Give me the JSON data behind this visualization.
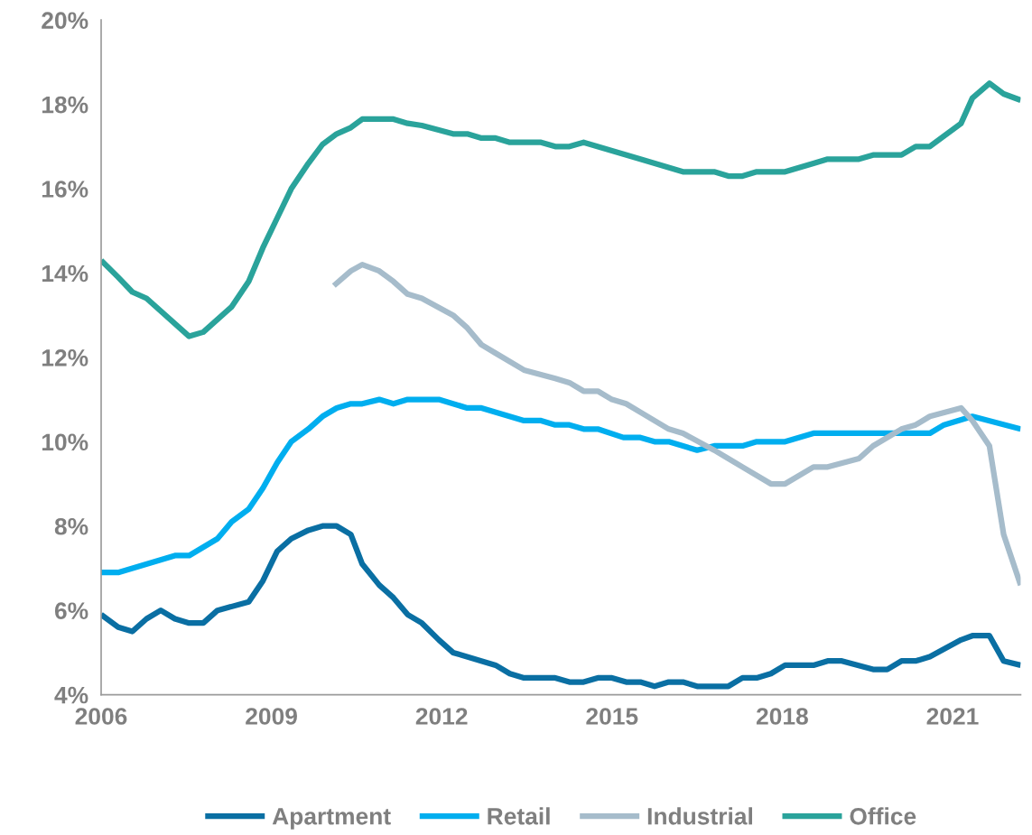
{
  "chart_data": {
    "type": "line",
    "xlim": [
      2006,
      2022.2
    ],
    "ylim": [
      4,
      20
    ],
    "xticks": [
      2006,
      2009,
      2012,
      2015,
      2018,
      2021
    ],
    "yticks": [
      {
        "value": 4,
        "label": "4%"
      },
      {
        "value": 6,
        "label": "6%"
      },
      {
        "value": 8,
        "label": "8%"
      },
      {
        "value": 10,
        "label": "10%"
      },
      {
        "value": 12,
        "label": "12%"
      },
      {
        "value": 14,
        "label": "14%"
      },
      {
        "value": 16,
        "label": "16%"
      },
      {
        "value": 18,
        "label": "18%"
      },
      {
        "value": 20,
        "label": "20%"
      }
    ],
    "grid": false,
    "legend": "bottom",
    "marker": "none",
    "line_style": "solid",
    "series": [
      {
        "name": "Apartment",
        "color": "#0a6fa3",
        "x": [
          2006,
          2006.3,
          2006.55,
          2006.8,
          2007.05,
          2007.3,
          2007.55,
          2007.8,
          2008.05,
          2008.6,
          2008.85,
          2009.1,
          2009.35,
          2009.65,
          2009.9,
          2010.15,
          2010.4,
          2010.6,
          2010.9,
          2011.15,
          2011.4,
          2011.65,
          2011.95,
          2012.2,
          2012.95,
          2013.2,
          2013.45,
          2014.0,
          2014.25,
          2014.5,
          2014.75,
          2015.0,
          2015.25,
          2015.5,
          2015.75,
          2016.0,
          2016.25,
          2016.5,
          2017.05,
          2017.3,
          2017.55,
          2017.8,
          2018.05,
          2018.55,
          2018.8,
          2019.05,
          2019.6,
          2019.85,
          2020.1,
          2020.35,
          2020.6,
          2021.15,
          2021.35,
          2021.65,
          2021.9,
          2022.2
        ],
        "values": [
          5.9,
          5.6,
          5.5,
          5.8,
          6.0,
          5.8,
          5.7,
          5.7,
          6.0,
          6.2,
          6.7,
          7.4,
          7.7,
          7.9,
          8.0,
          8.0,
          7.8,
          7.1,
          6.6,
          6.3,
          5.9,
          5.7,
          5.3,
          5.0,
          4.7,
          4.5,
          4.4,
          4.4,
          4.3,
          4.3,
          4.4,
          4.4,
          4.3,
          4.3,
          4.2,
          4.3,
          4.3,
          4.2,
          4.2,
          4.4,
          4.4,
          4.5,
          4.7,
          4.7,
          4.8,
          4.8,
          4.6,
          4.6,
          4.8,
          4.8,
          4.9,
          5.3,
          5.4,
          5.4,
          4.8,
          4.7
        ]
      },
      {
        "name": "Retail",
        "color": "#00aeef",
        "x": [
          2006,
          2006.3,
          2007.3,
          2007.55,
          2008.05,
          2008.3,
          2008.6,
          2008.85,
          2009.1,
          2009.35,
          2009.65,
          2009.9,
          2010.15,
          2010.4,
          2010.6,
          2010.9,
          2011.15,
          2011.4,
          2011.95,
          2012.45,
          2012.7,
          2013.45,
          2013.75,
          2014.0,
          2014.25,
          2014.5,
          2014.75,
          2015.2,
          2015.5,
          2015.75,
          2016.0,
          2016.5,
          2016.8,
          2017.3,
          2017.55,
          2018.05,
          2018.55,
          2020.6,
          2020.85,
          2021.35,
          2022.2
        ],
        "values": [
          6.9,
          6.9,
          7.3,
          7.3,
          7.7,
          8.1,
          8.4,
          8.9,
          9.5,
          10.0,
          10.3,
          10.6,
          10.8,
          10.9,
          10.9,
          11.0,
          10.9,
          11.0,
          11.0,
          10.8,
          10.8,
          10.5,
          10.5,
          10.4,
          10.4,
          10.3,
          10.3,
          10.1,
          10.1,
          10.0,
          10.0,
          9.8,
          9.9,
          9.9,
          10.0,
          10.0,
          10.2,
          10.2,
          10.4,
          10.6,
          10.3
        ]
      },
      {
        "name": "Industrial",
        "color": "#a6bccb",
        "x": [
          2010.1,
          2010.4,
          2010.6,
          2010.9,
          2011.15,
          2011.4,
          2011.65,
          2012.2,
          2012.45,
          2012.7,
          2012.95,
          2013.45,
          2014.0,
          2014.25,
          2014.5,
          2014.75,
          2015.0,
          2015.25,
          2015.5,
          2016.0,
          2016.25,
          2016.8,
          2017.3,
          2017.8,
          2018.05,
          2018.55,
          2018.8,
          2019.35,
          2019.6,
          2020.1,
          2020.35,
          2020.6,
          2021.15,
          2021.35,
          2021.65,
          2021.9,
          2022.2
        ],
        "values": [
          13.7,
          14.05,
          14.2,
          14.05,
          13.8,
          13.5,
          13.4,
          13.0,
          12.7,
          12.3,
          12.1,
          11.7,
          11.5,
          11.4,
          11.2,
          11.2,
          11.0,
          10.9,
          10.7,
          10.3,
          10.2,
          9.8,
          9.4,
          9.0,
          9.0,
          9.4,
          9.4,
          9.6,
          9.9,
          10.3,
          10.4,
          10.6,
          10.8,
          10.5,
          9.9,
          7.8,
          6.6
        ]
      },
      {
        "name": "Office",
        "color": "#2aa39b",
        "x": [
          2006,
          2006.3,
          2006.55,
          2006.8,
          2007.55,
          2007.8,
          2008.3,
          2008.6,
          2008.85,
          2009.1,
          2009.35,
          2009.65,
          2009.9,
          2010.15,
          2010.4,
          2010.6,
          2011.15,
          2011.4,
          2011.65,
          2012.2,
          2012.45,
          2012.7,
          2012.95,
          2013.2,
          2013.75,
          2014.0,
          2014.25,
          2014.5,
          2015.0,
          2015.5,
          2016.25,
          2016.8,
          2017.05,
          2017.3,
          2017.55,
          2018.05,
          2018.55,
          2018.8,
          2019.35,
          2019.6,
          2020.1,
          2020.35,
          2020.6,
          2021.15,
          2021.35,
          2021.65,
          2021.9,
          2022.2
        ],
        "values": [
          14.3,
          13.9,
          13.55,
          13.4,
          12.5,
          12.6,
          13.2,
          13.8,
          14.6,
          15.3,
          16.0,
          16.6,
          17.05,
          17.3,
          17.45,
          17.65,
          17.65,
          17.55,
          17.5,
          17.3,
          17.3,
          17.2,
          17.2,
          17.1,
          17.1,
          17.0,
          17.0,
          17.1,
          16.9,
          16.7,
          16.4,
          16.4,
          16.3,
          16.3,
          16.4,
          16.4,
          16.6,
          16.7,
          16.7,
          16.8,
          16.8,
          17.0,
          17.0,
          17.55,
          18.15,
          18.5,
          18.25,
          18.1
        ]
      }
    ]
  }
}
